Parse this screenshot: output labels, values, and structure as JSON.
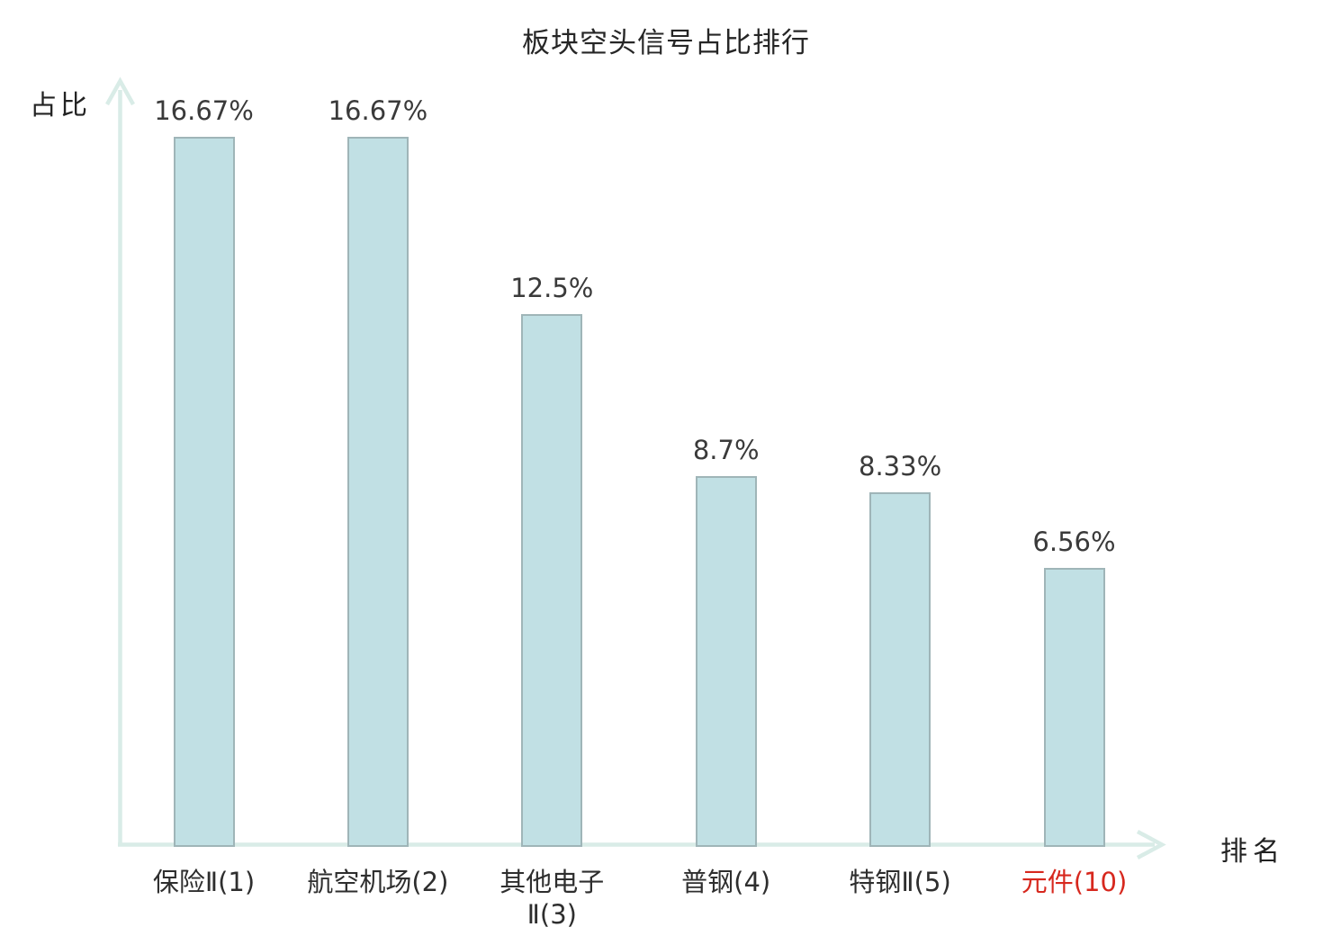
{
  "chart_data": {
    "type": "bar",
    "title": "板块空头信号占比排行",
    "xlabel": "排名",
    "ylabel": "占比",
    "ylim": [
      0,
      18
    ],
    "grid": false,
    "legend": null,
    "categories": [
      "保险Ⅱ(1)",
      "航空机场(2)",
      "其他电子Ⅱ(3)",
      "普钢(4)",
      "特钢Ⅱ(5)",
      "元件(10)"
    ],
    "values": [
      16.67,
      16.67,
      12.5,
      8.7,
      8.33,
      6.56
    ],
    "bars": [
      {
        "category": "保险Ⅱ(1)",
        "display_label": "保险Ⅱ(1)",
        "value": 16.67,
        "value_label": "16.67%",
        "highlighted": false
      },
      {
        "category": "航空机场(2)",
        "display_label": "航空机场(2)",
        "value": 16.67,
        "value_label": "16.67%",
        "highlighted": false
      },
      {
        "category": "其他电子Ⅱ(3)",
        "display_label": "其他电子\nⅡ(3)",
        "value": 12.5,
        "value_label": "12.5%",
        "highlighted": false
      },
      {
        "category": "普钢(4)",
        "display_label": "普钢(4)",
        "value": 8.7,
        "value_label": "8.7%",
        "highlighted": false
      },
      {
        "category": "特钢Ⅱ(5)",
        "display_label": "特钢Ⅱ(5)",
        "value": 8.33,
        "value_label": "8.33%",
        "highlighted": false
      },
      {
        "category": "元件(10)",
        "display_label": "元件(10)",
        "value": 6.56,
        "value_label": "6.56%",
        "highlighted": true
      }
    ]
  },
  "colors": {
    "background": "#ffffff",
    "bar_fill": "#c1e0e4",
    "bar_border": "#9fb5b8",
    "axis": "#d9ece7",
    "title_text": "#262626",
    "value_text": "#3a3a3a",
    "category_text": "#2e2e2e",
    "highlight": "#d7281e"
  }
}
